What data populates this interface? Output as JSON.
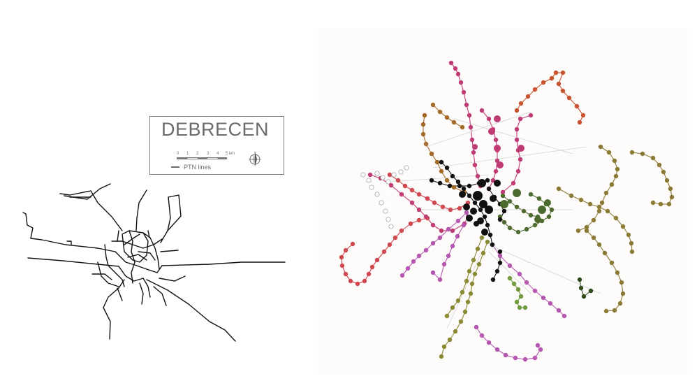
{
  "map": {
    "title": "DEBRECEN",
    "legend_label": "PTN lines",
    "scale_ticks": [
      "0",
      "1",
      "2",
      "3",
      "4",
      "5 km"
    ],
    "line_color": "#111111"
  },
  "graph": {
    "line_colors": {
      "red": "#d0484f",
      "orange_red": "#c9532e",
      "pink": "#c03a74",
      "magenta": "#b556b0",
      "brown": "#a36a28",
      "olive": "#8b7a33",
      "green": "#4e6b2f",
      "light_green": "#6f9a3e",
      "dark_green": "#2f4a1e",
      "khaki": "#8a8a35",
      "black": "#111111",
      "white": "#ffffff"
    }
  }
}
